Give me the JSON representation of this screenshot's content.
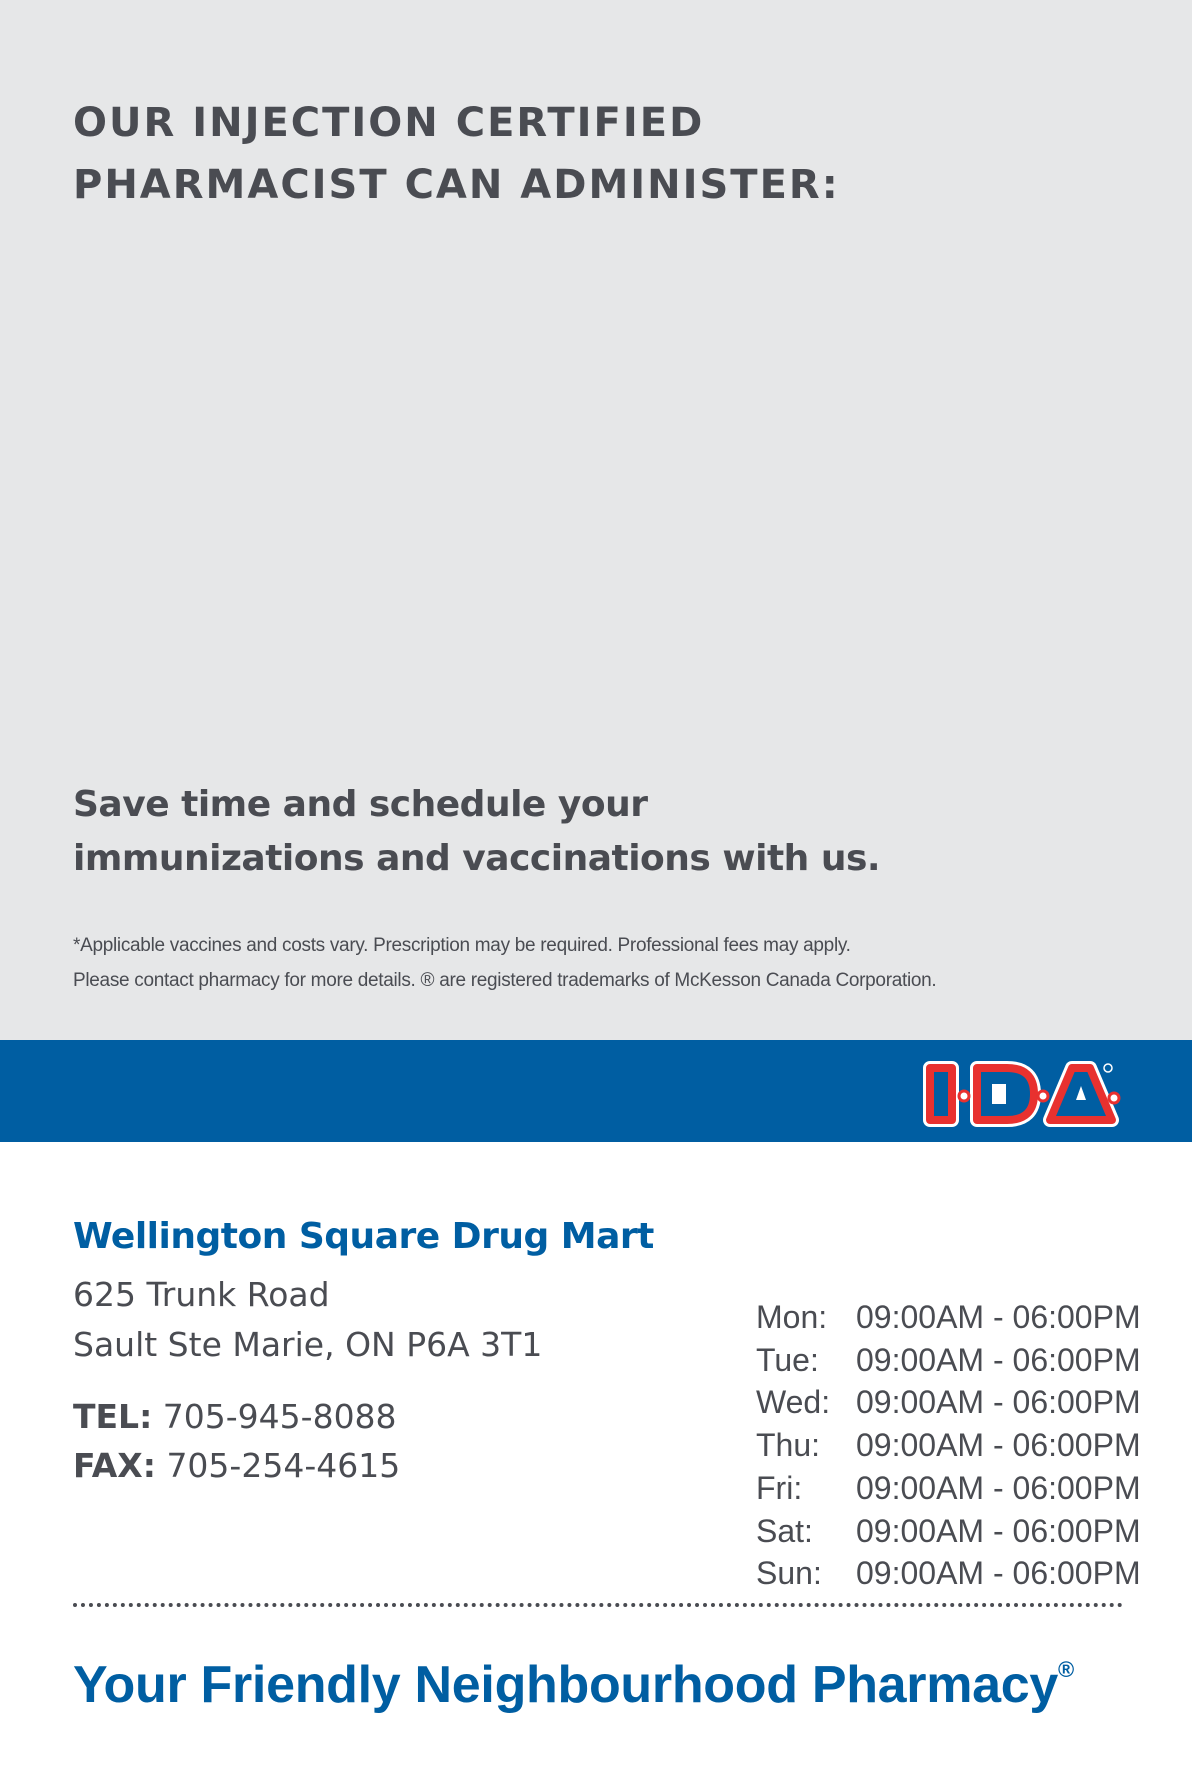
{
  "heading": {
    "line1": "OUR INJECTION CERTIFIED",
    "line2": "PHARMACIST CAN ADMINISTER:"
  },
  "subheading": {
    "line1": "Save time and schedule your",
    "line2": "immunizations and vaccinations with us."
  },
  "disclaimer": {
    "line1": "*Applicable vaccines and costs vary. Prescription may be required. Professional fees may apply.",
    "line2": "Please contact pharmacy for more details. ® are registered trademarks of McKesson Canada Corporation."
  },
  "logo": {
    "text": "I·D·A·",
    "colors": {
      "band": "#005ea2",
      "outline": "#e8312f"
    }
  },
  "store": {
    "name": "Wellington Square Drug Mart",
    "address1": "625 Trunk Road",
    "address2": "Sault Ste Marie, ON P6A 3T1",
    "tel_label": "TEL:",
    "tel": "705-945-8088",
    "fax_label": "FAX:",
    "fax": "705-254-4615"
  },
  "hours": [
    {
      "day": "Mon:",
      "time": "09:00AM - 06:00PM"
    },
    {
      "day": "Tue:",
      "time": "09:00AM - 06:00PM"
    },
    {
      "day": "Wed:",
      "time": "09:00AM - 06:00PM"
    },
    {
      "day": "Thu:",
      "time": "09:00AM - 06:00PM"
    },
    {
      "day": "Fri:",
      "time": "09:00AM - 06:00PM"
    },
    {
      "day": "Sat:",
      "time": "09:00AM - 06:00PM"
    },
    {
      "day": "Sun:",
      "time": "09:00AM - 06:00PM"
    }
  ],
  "slogan": {
    "text": "Your Friendly Neighbourhood Pharmacy",
    "mark": "®"
  }
}
